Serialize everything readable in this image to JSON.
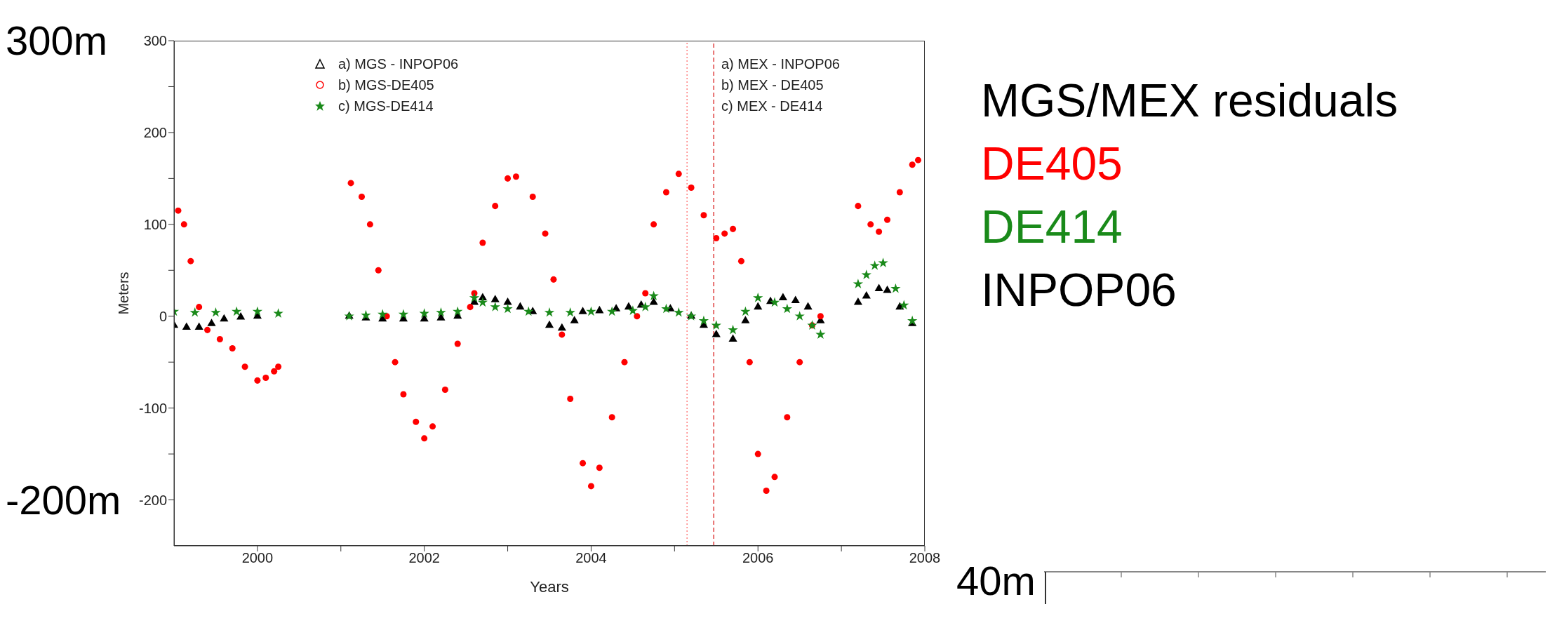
{
  "chart_data": {
    "type": "scatter",
    "title": "MGS/MEX residuals",
    "xlabel": "Years",
    "ylabel": "Meters",
    "xlim": [
      1999,
      2008
    ],
    "ylim": [
      -250,
      300
    ],
    "xticks": [
      2000,
      {
        "value": 2001,
        "label": null
      },
      2002,
      {
        "value": 2003,
        "label": null
      },
      2004,
      {
        "value": 2005,
        "label": null
      },
      2006,
      {
        "value": 2007,
        "label": null
      },
      2008
    ],
    "yticks": [
      -200,
      {
        "value": -150,
        "label": null
      },
      -100,
      {
        "value": -50,
        "label": null
      },
      0,
      {
        "value": 50,
        "label": null
      },
      100,
      {
        "value": 150,
        "label": null
      },
      200,
      {
        "value": 250,
        "label": null
      },
      300
    ],
    "legend": "top left",
    "series": [
      {
        "name": "a) MGS - INPOP06",
        "color": "#000000",
        "marker": "triangle",
        "x": [
          1999.0,
          1999.15,
          1999.3,
          1999.45,
          1999.6,
          1999.8,
          2000.0,
          2000.25,
          2001.1,
          2001.3,
          2001.5,
          2001.75,
          2002.0,
          2002.2,
          2002.4,
          2002.6,
          2002.7,
          2002.85,
          2003.0,
          2003.15,
          2003.3,
          2003.5,
          2003.65,
          2003.8,
          2003.9,
          2004.1,
          2004.3,
          2004.45,
          2004.6,
          2004.75,
          2004.95,
          2005.2,
          2005.35,
          2005.5,
          2005.7,
          2005.85,
          2006.0,
          2006.15,
          2006.3,
          2006.45,
          2006.6,
          2006.75,
          2007.2,
          2007.3,
          2007.45,
          2007.55,
          2007.7,
          2007.85
        ],
        "values": [
          -10,
          -12,
          -12,
          -8,
          -3,
          -1,
          0,
          null,
          0,
          -2,
          -3,
          -3,
          -3,
          -2,
          0,
          15,
          20,
          18,
          15,
          10,
          5,
          -10,
          -13,
          -5,
          5,
          6,
          8,
          10,
          12,
          15,
          8,
          0,
          -10,
          -20,
          -25,
          -5,
          10,
          16,
          20,
          17,
          10,
          -5,
          15,
          22,
          30,
          28,
          10,
          -8
        ]
      },
      {
        "name": "b) MGS-DE405",
        "color": "#ff0000",
        "marker": "circle",
        "x": [
          1999.05,
          1999.12,
          1999.2,
          1999.3,
          1999.4,
          1999.55,
          1999.7,
          1999.85,
          2000.0,
          2000.1,
          2000.2,
          2000.25,
          2001.12,
          2001.25,
          2001.35,
          2001.45,
          2001.55,
          2001.65,
          2001.75,
          2001.9,
          2002.0,
          2002.1,
          2002.25,
          2002.4,
          2002.55,
          2002.6,
          2002.7,
          2002.85,
          2003.0,
          2003.1,
          2003.3,
          2003.45,
          2003.55,
          2003.65,
          2003.75,
          2003.9,
          2004.0,
          2004.1,
          2004.25,
          2004.4,
          2004.55,
          2004.65,
          2004.75,
          2004.9,
          2005.05,
          2005.2,
          2005.35,
          2005.5,
          2005.6,
          2005.7,
          2005.8,
          2005.9,
          2006.0,
          2006.1,
          2006.2,
          2006.35,
          2006.5,
          2006.65,
          2006.75,
          2007.2,
          2007.35,
          2007.45,
          2007.55,
          2007.7,
          2007.85,
          2007.92
        ],
        "values": [
          115,
          100,
          60,
          10,
          -15,
          -25,
          -35,
          -55,
          -70,
          -67,
          -60,
          -55,
          145,
          130,
          100,
          50,
          0,
          -50,
          -85,
          -115,
          -133,
          -120,
          -80,
          -30,
          10,
          25,
          80,
          120,
          150,
          152,
          130,
          90,
          40,
          -20,
          -90,
          -160,
          -185,
          -165,
          -110,
          -50,
          0,
          25,
          100,
          135,
          155,
          140,
          110,
          85,
          90,
          95,
          60,
          -50,
          -150,
          -190,
          -175,
          -110,
          -50,
          -10,
          0,
          120,
          100,
          92,
          105,
          135,
          165,
          170
        ]
      },
      {
        "name": "c) MGS-DE414",
        "color": "#1a8a1a",
        "marker": "star",
        "x": [
          1999.0,
          1999.25,
          1999.5,
          1999.75,
          2000.0,
          2000.25,
          2001.1,
          2001.3,
          2001.5,
          2001.75,
          2002.0,
          2002.2,
          2002.4,
          2002.6,
          2002.7,
          2002.85,
          2003.0,
          2003.25,
          2003.5,
          2003.75,
          2004.0,
          2004.25,
          2004.5,
          2004.65,
          2004.75,
          2004.9,
          2005.05,
          2005.2,
          2005.35,
          2005.5,
          2005.7,
          2005.85,
          2006.0,
          2006.2,
          2006.35,
          2006.5,
          2006.65,
          2006.75,
          2007.2,
          2007.3,
          2007.4,
          2007.5,
          2007.65,
          2007.75,
          2007.85
        ],
        "values": [
          5,
          4,
          4,
          5,
          5,
          3,
          0,
          1,
          2,
          2,
          3,
          4,
          5,
          20,
          15,
          10,
          8,
          5,
          4,
          4,
          5,
          5,
          6,
          10,
          22,
          8,
          4,
          0,
          -5,
          -10,
          -15,
          5,
          20,
          15,
          8,
          0,
          -10,
          -20,
          35,
          45,
          55,
          58,
          30,
          12,
          -5
        ]
      }
    ],
    "ref_lines": [
      {
        "axis": "x",
        "value": 2005.15,
        "color": "#ff8080",
        "line_style": "dotted"
      },
      {
        "axis": "x",
        "value": 2005.47,
        "color": "#e04040",
        "line_style": "dashed"
      }
    ],
    "annotations": [
      "a) MEX - INPOP06",
      "b) MEX - DE405",
      "c) MEX - DE414",
      "300m",
      "-200m",
      "40m",
      "DE405",
      "DE414",
      "INPOP06"
    ]
  }
}
